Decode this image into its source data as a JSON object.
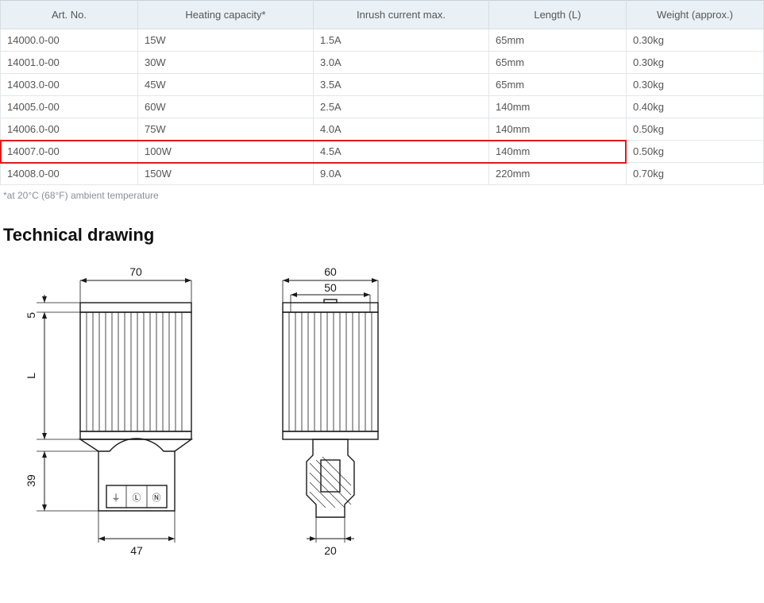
{
  "table": {
    "headers": [
      "Art. No.",
      "Heating capacity*",
      "Inrush current max.",
      "Length (L)",
      "Weight (approx.)"
    ],
    "col_widths_pct": [
      18,
      23,
      23,
      18,
      18
    ],
    "header_bg": "#eaf1f6",
    "border_color": "#e3e6ea",
    "font_size": 13,
    "rows": [
      [
        "14000.0-00",
        "15W",
        "1.5A",
        "65mm",
        "0.30kg"
      ],
      [
        "14001.0-00",
        "30W",
        "3.0A",
        "65mm",
        "0.30kg"
      ],
      [
        "14003.0-00",
        "45W",
        "3.5A",
        "65mm",
        "0.30kg"
      ],
      [
        "14005.0-00",
        "60W",
        "2.5A",
        "140mm",
        "0.40kg"
      ],
      [
        "14006.0-00",
        "75W",
        "4.0A",
        "140mm",
        "0.50kg"
      ],
      [
        "14007.0-00",
        "100W",
        "4.5A",
        "140mm",
        "0.50kg"
      ],
      [
        "14008.0-00",
        "150W",
        "9.0A",
        "220mm",
        "0.70kg"
      ]
    ],
    "highlight_row_index": 5,
    "highlight_color": "#e11b1b",
    "highlight_cols": 4
  },
  "footnote": "*at 20°C (68°F) ambient temperature",
  "section_title": "Technical drawing",
  "drawing": {
    "front": {
      "dim_top": "70",
      "dim_bottom": "47",
      "dim_left_top": "5",
      "dim_left_mid": "L",
      "dim_left_bot": "39"
    },
    "side": {
      "dim_top_outer": "60",
      "dim_top_inner": "50",
      "dim_bottom": "20"
    },
    "stroke_color": "#1a1a1a",
    "text_color": "#1a1a1a",
    "dim_fontsize": 14
  }
}
